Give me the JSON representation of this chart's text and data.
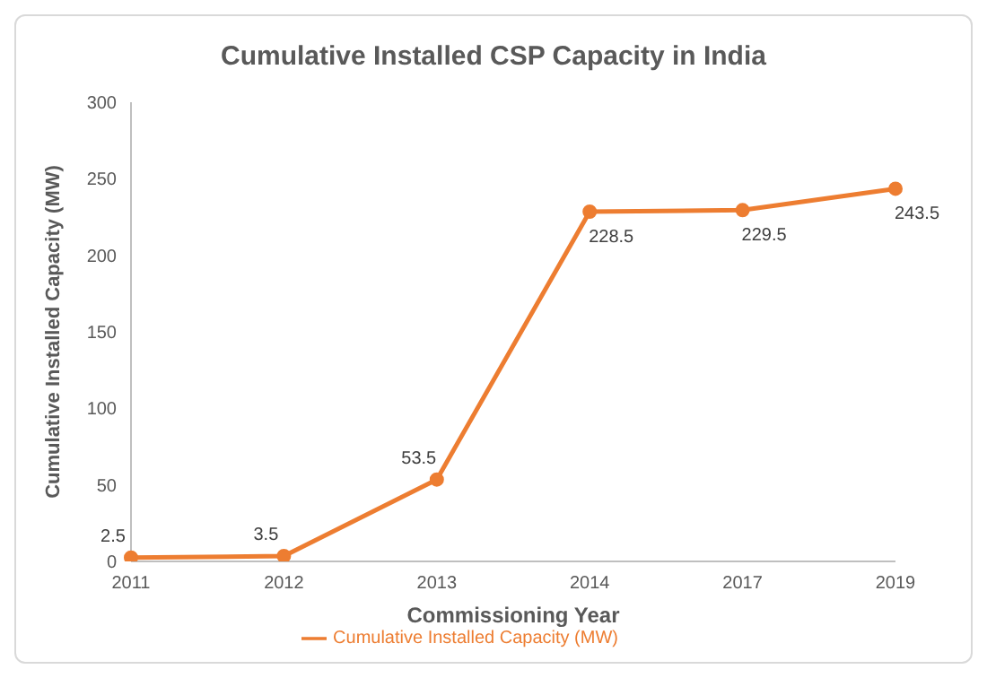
{
  "chart_data": {
    "type": "line",
    "title": "Cumulative Installed CSP Capacity in India",
    "xlabel": "Commissioning Year",
    "ylabel": "Cumulative Installed Capacity (MW)",
    "categories": [
      "2011",
      "2012",
      "2013",
      "2014",
      "2017",
      "2019"
    ],
    "series": [
      {
        "name": "Cumulative Installed Capacity (MW)",
        "color": "#ed7d31",
        "values": [
          2.5,
          3.5,
          53.5,
          228.5,
          229.5,
          243.5
        ]
      }
    ],
    "ylim": [
      0,
      300
    ],
    "yticks": [
      0,
      50,
      100,
      150,
      200,
      250,
      300
    ],
    "grid": false,
    "legend": "bottom",
    "marker": "circle",
    "line_style": "solid",
    "data_labels": true
  }
}
